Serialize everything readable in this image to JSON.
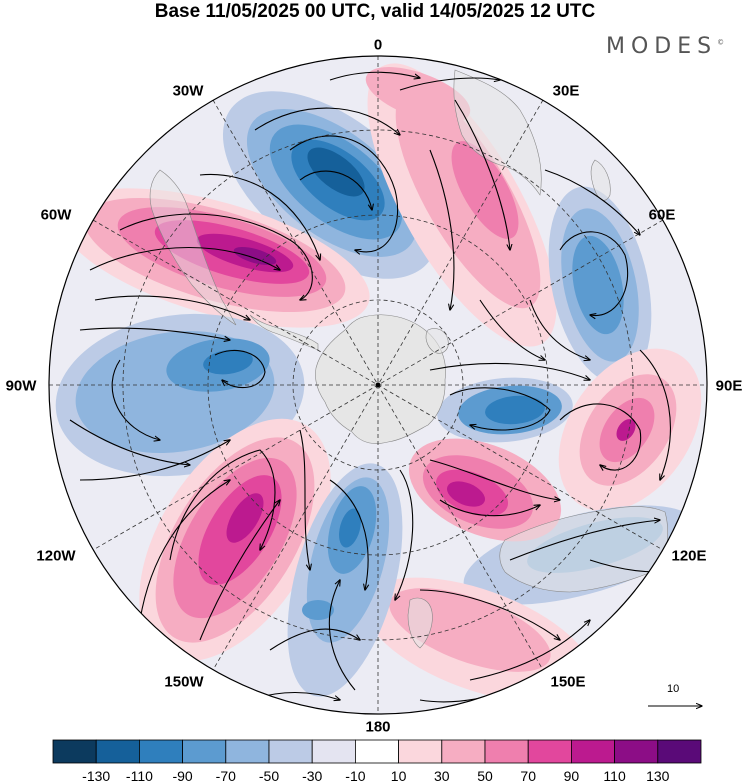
{
  "title": "Base 11/05/2025 00 UTC, valid 14/05/2025 12 UTC",
  "brand": "MODES",
  "brand_mark": "©",
  "longitude_labels": [
    {
      "id": "lon-0",
      "text": "0"
    },
    {
      "id": "lon-30e",
      "text": "30E"
    },
    {
      "id": "lon-60e",
      "text": "60E"
    },
    {
      "id": "lon-90e",
      "text": "90E"
    },
    {
      "id": "lon-120e",
      "text": "120E"
    },
    {
      "id": "lon-150e",
      "text": "150E"
    },
    {
      "id": "lon-180",
      "text": "180"
    },
    {
      "id": "lon-150w",
      "text": "150W"
    },
    {
      "id": "lon-120w",
      "text": "120W"
    },
    {
      "id": "lon-90w",
      "text": "90W"
    },
    {
      "id": "lon-60w",
      "text": "60W"
    },
    {
      "id": "lon-30w",
      "text": "30W"
    }
  ],
  "reference_vector": "10",
  "colorbar": {
    "colors": [
      "#0c3a5e",
      "#15609a",
      "#2f7fbd",
      "#5c9bd0",
      "#8fb5de",
      "#bccbe6",
      "#e4e4f1",
      "#ffffff",
      "#fbd7dd",
      "#f6adc2",
      "#ef7fae",
      "#e2479d",
      "#bc1a8f",
      "#8c0d86",
      "#5a0a78"
    ],
    "tick_labels": [
      "-130",
      "-110",
      "-90",
      "-70",
      "-50",
      "-30",
      "-10",
      "10",
      "30",
      "50",
      "70",
      "90",
      "110",
      "130"
    ]
  }
}
